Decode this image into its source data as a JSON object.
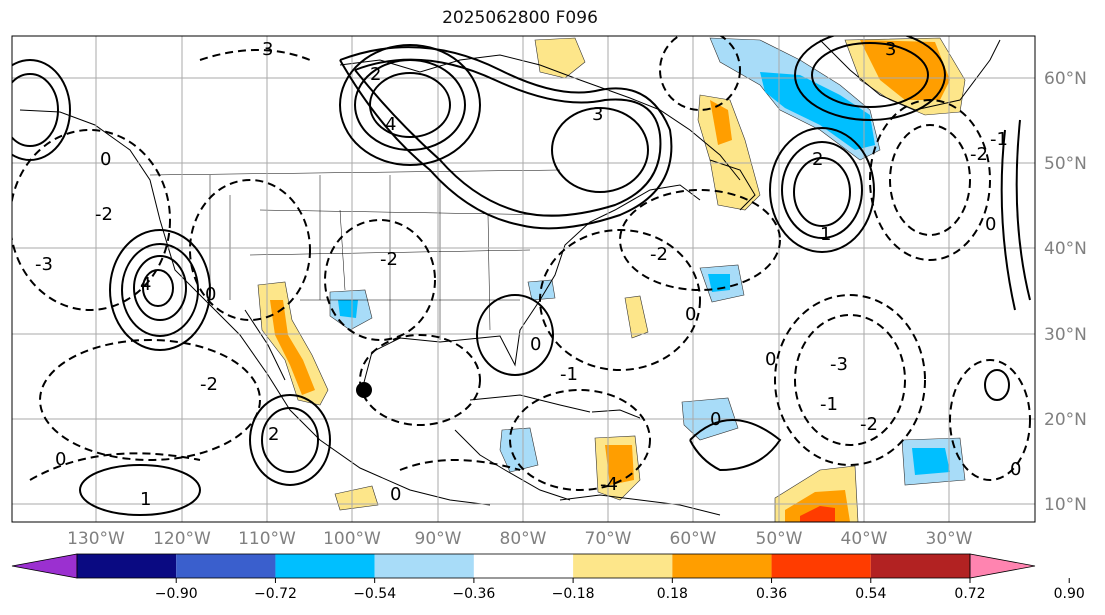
{
  "title": "2025062800 F096",
  "map": {
    "lon_range": [
      -140,
      -20
    ],
    "lat_range": [
      8,
      65
    ],
    "lon_tick_labels": [
      "130°W",
      "120°W",
      "110°W",
      "100°W",
      "90°W",
      "80°W",
      "70°W",
      "60°W",
      "50°W",
      "40°W",
      "30°W"
    ],
    "lat_tick_labels": [
      "60°N",
      "50°N",
      "40°N",
      "30°N",
      "20°N",
      "10°N"
    ],
    "grid_lines": true,
    "contour_labels": [
      "3",
      "2",
      "1",
      "0",
      "-1",
      "-2",
      "-3",
      "4",
      "-4"
    ],
    "marker": "black-dot"
  },
  "colorbar": {
    "tick_labels": [
      "−0.90",
      "−0.72",
      "−0.54",
      "−0.36",
      "−0.18",
      "0.18",
      "0.36",
      "0.54",
      "0.72",
      "0.90"
    ],
    "colors": [
      "#9b30d0",
      "#0a0a82",
      "#3a5fcd",
      "#00bfff",
      "#a8dcf8",
      "#ffffff",
      "#fde68a",
      "#ff9e00",
      "#ff3c00",
      "#b22222",
      "#ff84b0"
    ]
  }
}
